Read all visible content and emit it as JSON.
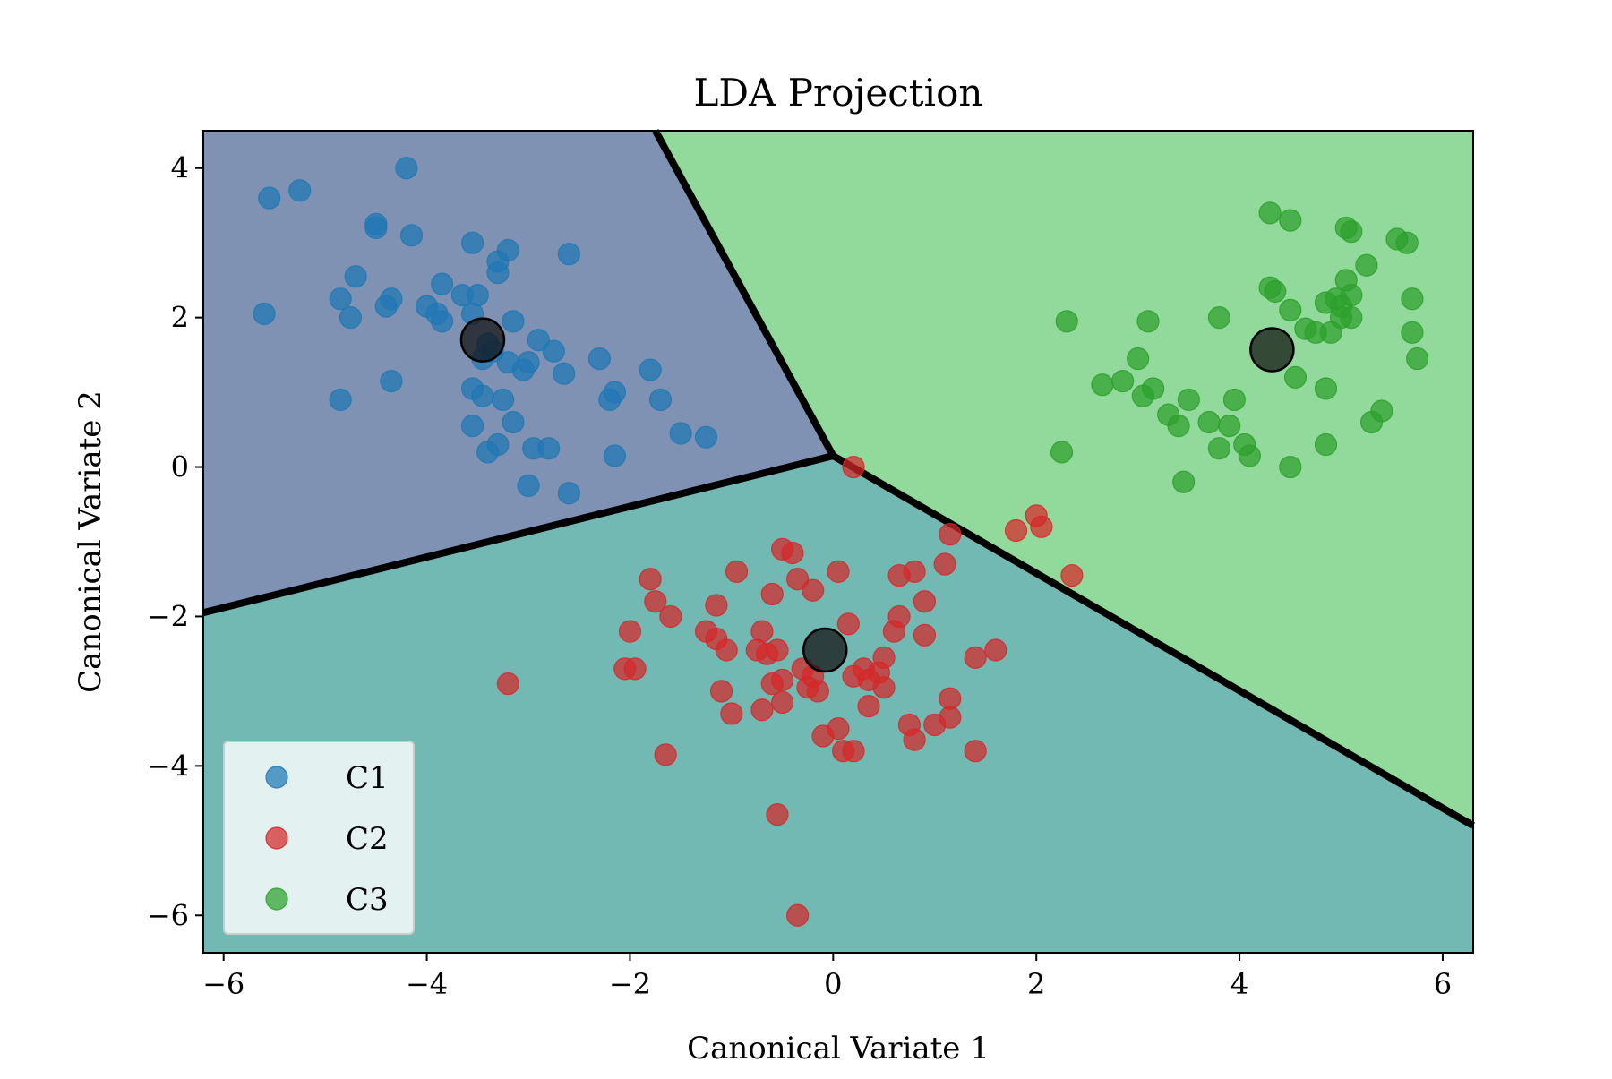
{
  "chart_data": {
    "type": "scatter",
    "title": "LDA Projection",
    "xlabel": "Canonical Variate 1",
    "ylabel": "Canonical Variate 2",
    "xlim": [
      -6.2,
      6.3
    ],
    "ylim": [
      -6.5,
      4.5
    ],
    "xticks": [
      -6,
      -4,
      -2,
      0,
      2,
      4,
      6
    ],
    "xtick_labels": [
      "−6",
      "−4",
      "−2",
      "0",
      "2",
      "4",
      "6"
    ],
    "yticks": [
      4,
      2,
      0,
      -2,
      -4,
      -6
    ],
    "ytick_labels": [
      "4",
      "2",
      "0",
      "−2",
      "−4",
      "−6"
    ],
    "grid": false,
    "legend_position": "lower-left",
    "regions": [
      {
        "label": "C1",
        "color": "#8092b3",
        "polygon": [
          [
            -6.2,
            4.5
          ],
          [
            -1.75,
            4.5
          ],
          [
            0.0,
            0.15
          ],
          [
            -6.2,
            -1.95
          ]
        ]
      },
      {
        "label": "C2",
        "color": "#72b8b3",
        "polygon": [
          [
            -6.2,
            -1.95
          ],
          [
            0.0,
            0.15
          ],
          [
            6.3,
            -4.8
          ],
          [
            6.3,
            -6.5
          ],
          [
            -6.2,
            -6.5
          ]
        ]
      },
      {
        "label": "C3",
        "color": "#92da9c",
        "polygon": [
          [
            -1.75,
            4.5
          ],
          [
            6.3,
            4.5
          ],
          [
            6.3,
            -4.8
          ],
          [
            0.0,
            0.15
          ]
        ]
      }
    ],
    "boundaries": [
      [
        [
          -1.75,
          4.5
        ],
        [
          0.0,
          0.15
        ]
      ],
      [
        [
          0.0,
          0.15
        ],
        [
          -6.2,
          -1.95
        ]
      ],
      [
        [
          0.0,
          0.15
        ],
        [
          6.3,
          -4.8
        ]
      ]
    ],
    "series": [
      {
        "name": "C1",
        "color": "#1f77b4",
        "points": [
          [
            -5.55,
            3.6
          ],
          [
            -5.25,
            3.7
          ],
          [
            -4.2,
            4.0
          ],
          [
            -4.5,
            3.25
          ],
          [
            -4.5,
            3.2
          ],
          [
            -4.15,
            3.1
          ],
          [
            -3.55,
            3.0
          ],
          [
            -3.3,
            2.75
          ],
          [
            -3.2,
            2.9
          ],
          [
            -2.6,
            2.85
          ],
          [
            -3.3,
            2.6
          ],
          [
            -4.7,
            2.55
          ],
          [
            -3.85,
            2.45
          ],
          [
            -3.65,
            2.3
          ],
          [
            -3.5,
            2.3
          ],
          [
            -3.55,
            2.05
          ],
          [
            -4.35,
            2.25
          ],
          [
            -4.4,
            2.15
          ],
          [
            -4.0,
            2.15
          ],
          [
            -3.9,
            2.05
          ],
          [
            -3.85,
            1.95
          ],
          [
            -4.85,
            2.25
          ],
          [
            -4.75,
            2.0
          ],
          [
            -5.6,
            2.05
          ],
          [
            -3.15,
            1.95
          ],
          [
            -2.9,
            1.7
          ],
          [
            -2.75,
            1.55
          ],
          [
            -3.4,
            1.65
          ],
          [
            -3.35,
            1.55
          ],
          [
            -3.45,
            1.45
          ],
          [
            -3.2,
            1.4
          ],
          [
            -3.0,
            1.4
          ],
          [
            -3.05,
            1.3
          ],
          [
            -2.65,
            1.25
          ],
          [
            -2.3,
            1.45
          ],
          [
            -4.35,
            1.15
          ],
          [
            -4.85,
            0.9
          ],
          [
            -3.55,
            1.05
          ],
          [
            -3.45,
            0.95
          ],
          [
            -3.25,
            0.9
          ],
          [
            -3.15,
            0.6
          ],
          [
            -3.55,
            0.55
          ],
          [
            -3.4,
            0.2
          ],
          [
            -3.3,
            0.3
          ],
          [
            -2.95,
            0.25
          ],
          [
            -2.8,
            0.25
          ],
          [
            -3.0,
            -0.25
          ],
          [
            -2.6,
            -0.35
          ],
          [
            -2.15,
            0.15
          ],
          [
            -2.2,
            0.9
          ],
          [
            -2.15,
            1.0
          ],
          [
            -1.8,
            1.3
          ],
          [
            -1.7,
            0.9
          ],
          [
            -1.5,
            0.45
          ],
          [
            -1.25,
            0.4
          ]
        ]
      },
      {
        "name": "C2",
        "color": "#d62728",
        "points": [
          [
            0.2,
            0.0
          ],
          [
            1.8,
            -0.85
          ],
          [
            2.0,
            -0.65
          ],
          [
            2.05,
            -0.8
          ],
          [
            2.35,
            -1.45
          ],
          [
            1.15,
            -0.9
          ],
          [
            1.1,
            -1.3
          ],
          [
            0.8,
            -1.4
          ],
          [
            0.65,
            -1.45
          ],
          [
            0.9,
            -1.8
          ],
          [
            0.65,
            -2.0
          ],
          [
            0.6,
            -2.2
          ],
          [
            0.9,
            -2.25
          ],
          [
            1.6,
            -2.45
          ],
          [
            1.4,
            -2.55
          ],
          [
            0.5,
            -2.55
          ],
          [
            0.45,
            -2.75
          ],
          [
            0.3,
            -2.7
          ],
          [
            0.35,
            -2.85
          ],
          [
            0.5,
            -2.95
          ],
          [
            0.2,
            -2.8
          ],
          [
            0.15,
            -2.1
          ],
          [
            0.05,
            -1.4
          ],
          [
            -0.5,
            -1.1
          ],
          [
            -0.4,
            -1.15
          ],
          [
            -0.35,
            -1.5
          ],
          [
            -0.2,
            -1.65
          ],
          [
            -0.6,
            -1.7
          ],
          [
            -0.95,
            -1.4
          ],
          [
            -1.8,
            -1.5
          ],
          [
            -1.75,
            -1.8
          ],
          [
            -1.6,
            -2.0
          ],
          [
            -1.15,
            -1.85
          ],
          [
            -1.25,
            -2.2
          ],
          [
            -1.15,
            -2.3
          ],
          [
            -1.05,
            -2.45
          ],
          [
            -0.7,
            -2.2
          ],
          [
            -0.75,
            -2.45
          ],
          [
            -0.65,
            -2.5
          ],
          [
            -0.55,
            -2.45
          ],
          [
            -0.3,
            -2.7
          ],
          [
            -0.2,
            -2.8
          ],
          [
            -0.25,
            -2.95
          ],
          [
            -0.15,
            -3.0
          ],
          [
            -0.5,
            -2.85
          ],
          [
            -0.6,
            -2.9
          ],
          [
            -0.5,
            -3.15
          ],
          [
            -0.7,
            -3.25
          ],
          [
            -1.1,
            -3.0
          ],
          [
            -1.0,
            -3.3
          ],
          [
            -2.0,
            -2.2
          ],
          [
            -2.05,
            -2.7
          ],
          [
            -1.95,
            -2.7
          ],
          [
            -3.2,
            -2.9
          ],
          [
            0.35,
            -3.2
          ],
          [
            0.05,
            -3.5
          ],
          [
            -0.1,
            -3.6
          ],
          [
            0.1,
            -3.8
          ],
          [
            0.2,
            -3.8
          ],
          [
            0.75,
            -3.45
          ],
          [
            0.8,
            -3.65
          ],
          [
            1.0,
            -3.45
          ],
          [
            1.15,
            -3.35
          ],
          [
            1.15,
            -3.1
          ],
          [
            1.4,
            -3.8
          ],
          [
            -1.65,
            -3.85
          ],
          [
            -0.55,
            -4.65
          ],
          [
            -0.35,
            -6.0
          ]
        ]
      },
      {
        "name": "C3",
        "color": "#2ca02c",
        "points": [
          [
            4.3,
            3.4
          ],
          [
            4.5,
            3.3
          ],
          [
            5.05,
            3.2
          ],
          [
            5.1,
            3.15
          ],
          [
            5.55,
            3.05
          ],
          [
            5.65,
            3.0
          ],
          [
            5.25,
            2.7
          ],
          [
            5.05,
            2.5
          ],
          [
            4.3,
            2.4
          ],
          [
            4.35,
            2.35
          ],
          [
            5.1,
            2.3
          ],
          [
            4.95,
            2.25
          ],
          [
            5.0,
            2.15
          ],
          [
            4.85,
            2.2
          ],
          [
            5.7,
            2.25
          ],
          [
            4.5,
            2.1
          ],
          [
            4.65,
            1.85
          ],
          [
            4.75,
            1.8
          ],
          [
            4.9,
            1.8
          ],
          [
            5.0,
            2.0
          ],
          [
            5.1,
            2.0
          ],
          [
            5.7,
            1.8
          ],
          [
            5.75,
            1.45
          ],
          [
            4.55,
            1.2
          ],
          [
            4.85,
            1.05
          ],
          [
            3.8,
            2.0
          ],
          [
            3.1,
            1.95
          ],
          [
            2.3,
            1.95
          ],
          [
            3.0,
            1.45
          ],
          [
            2.65,
            1.1
          ],
          [
            2.85,
            1.15
          ],
          [
            3.05,
            0.95
          ],
          [
            3.15,
            1.05
          ],
          [
            3.5,
            0.9
          ],
          [
            3.95,
            0.9
          ],
          [
            3.3,
            0.7
          ],
          [
            3.4,
            0.55
          ],
          [
            3.7,
            0.6
          ],
          [
            3.9,
            0.55
          ],
          [
            4.05,
            0.3
          ],
          [
            4.1,
            0.15
          ],
          [
            3.8,
            0.25
          ],
          [
            5.4,
            0.75
          ],
          [
            5.3,
            0.6
          ],
          [
            4.85,
            0.3
          ],
          [
            4.5,
            0.0
          ],
          [
            3.45,
            -0.2
          ],
          [
            2.25,
            0.2
          ]
        ]
      }
    ],
    "means": [
      {
        "label": "C1",
        "x": -3.45,
        "y": 1.7
      },
      {
        "label": "C2",
        "x": -0.08,
        "y": -2.45
      },
      {
        "label": "C3",
        "x": 4.32,
        "y": 1.57
      }
    ]
  }
}
